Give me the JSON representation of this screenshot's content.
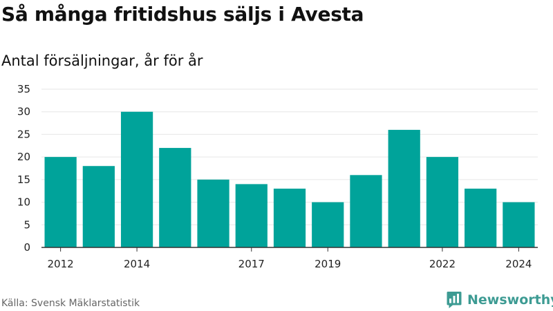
{
  "title": "Så många fritidshus säljs i Avesta",
  "subtitle": "Antal försäljningar, år för år",
  "source": "Källa: Svensk Mäklarstatistik",
  "brand": {
    "name": "Newsworthy",
    "icon": "newsworthy-chart-logo-icon",
    "color": "#3d9b93"
  },
  "chart_data": {
    "type": "bar",
    "categories": [
      "2012",
      "2013",
      "2014",
      "2015",
      "2016",
      "2017",
      "2018",
      "2019",
      "2020",
      "2021",
      "2022",
      "2023",
      "2024"
    ],
    "values": [
      20,
      18,
      30,
      22,
      15,
      14,
      13,
      10,
      16,
      26,
      20,
      13,
      10
    ],
    "x_tick_labels": [
      "2012",
      "2014",
      "2017",
      "2019",
      "2022",
      "2024"
    ],
    "y_ticks": [
      0,
      5,
      10,
      15,
      20,
      25,
      30,
      35
    ],
    "ylim": [
      0,
      35
    ],
    "xlabel": "",
    "ylabel": "",
    "grid": true,
    "legend": "none",
    "bar_color": "#00a39a",
    "grid_color": "#e6e6e6",
    "axis_color": "#333333"
  }
}
